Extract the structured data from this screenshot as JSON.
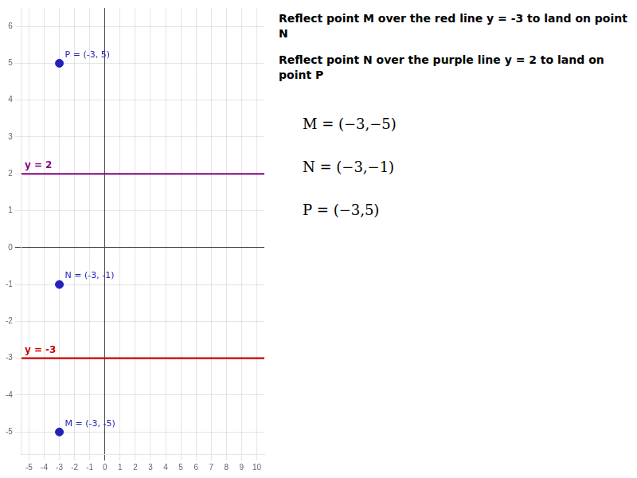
{
  "chart_data": {
    "type": "scatter",
    "xlim": [
      -5.5,
      10.5
    ],
    "ylim": [
      -5.6,
      6.5
    ],
    "xticks": [
      -5,
      -4,
      -3,
      -2,
      -1,
      0,
      1,
      2,
      3,
      4,
      5,
      6,
      7,
      8,
      9,
      10
    ],
    "yticks": [
      -5,
      -4,
      -3,
      -2,
      -1,
      0,
      1,
      2,
      3,
      4,
      5,
      6
    ],
    "grid": true,
    "series": [
      {
        "type": "scatter",
        "color": "#2222bb",
        "x": [
          -3,
          -3,
          -3
        ],
        "values": [
          -5,
          -1,
          5
        ],
        "labels": [
          "M = (-3, -5)",
          "N = (-3, -1)",
          "P = (-3, 5)"
        ]
      },
      {
        "type": "hline",
        "color": "#800080",
        "values": [
          2
        ],
        "labels": [
          "y = 2"
        ]
      },
      {
        "type": "hline",
        "color": "#cc0000",
        "values": [
          -3
        ],
        "labels": [
          "y = -3"
        ]
      }
    ],
    "annotations": [
      "Reflect point M over the red line y = -3 to land on point N",
      "Reflect point N over the purple line y = 2 to land on point P",
      "M = (−3,−5)",
      "N = (−3,−1)",
      "P = (−3,5)"
    ]
  }
}
